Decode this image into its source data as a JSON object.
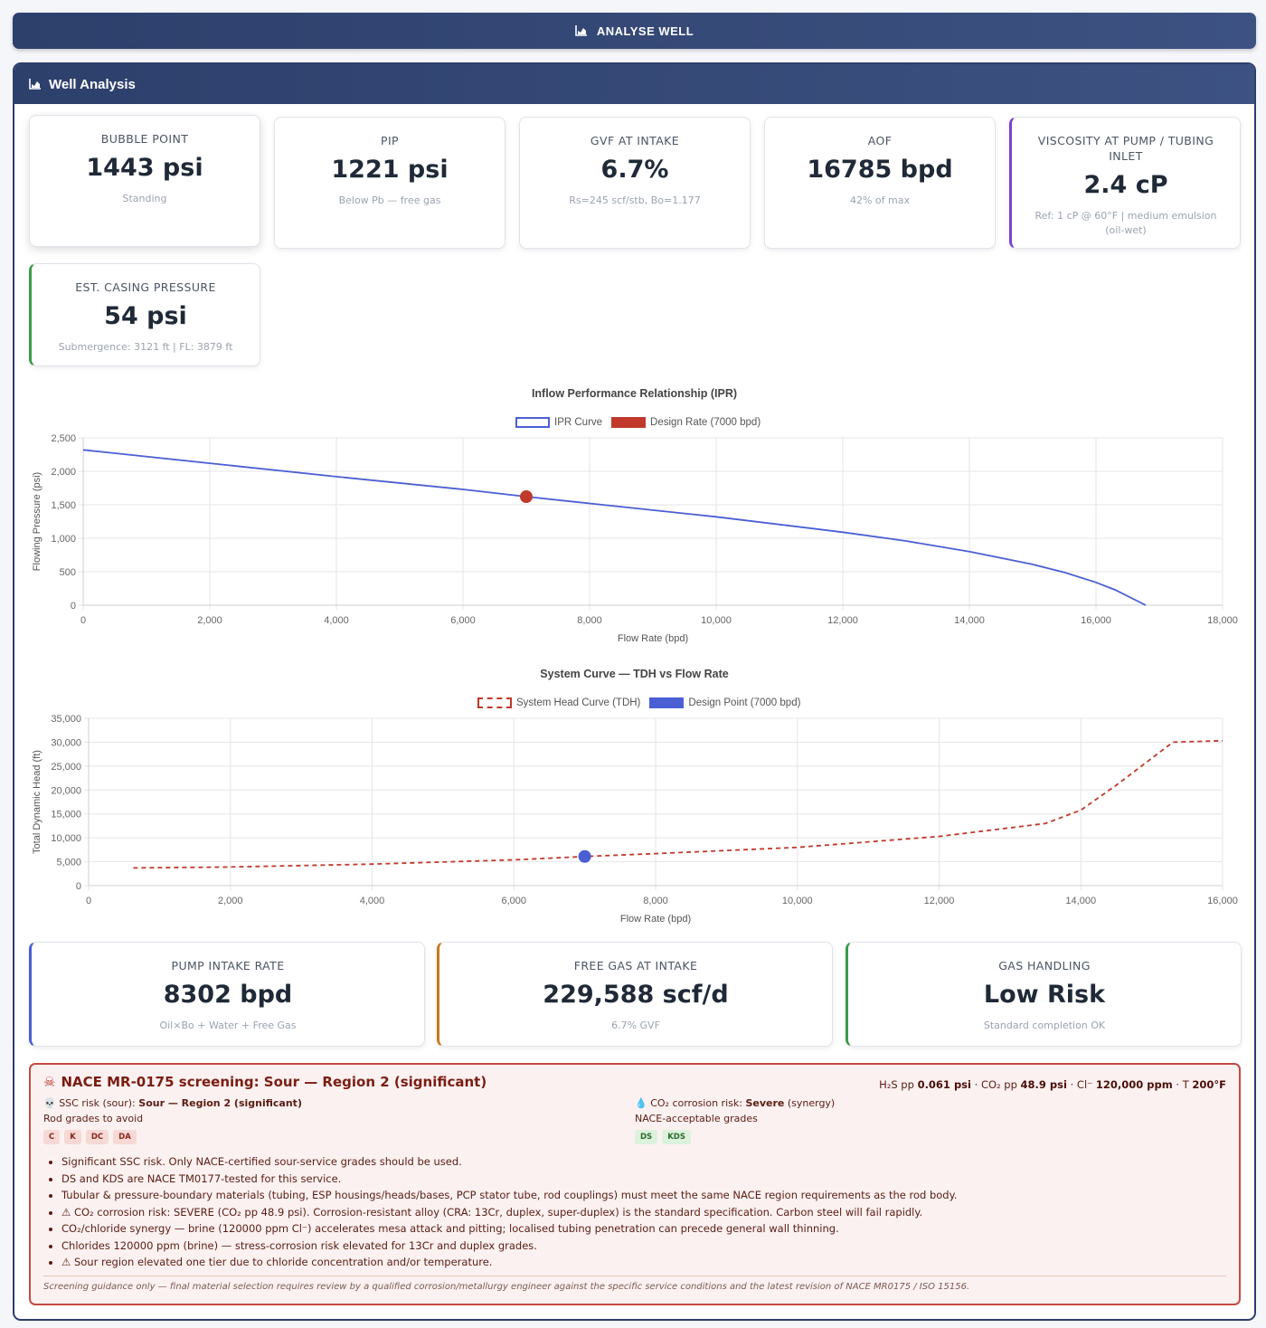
{
  "analyse_button": {
    "label": "ANALYSE WELL"
  },
  "panel": {
    "title": "Well Analysis"
  },
  "metrics": {
    "bubble_point": {
      "label": "BUBBLE POINT",
      "value": "1443 psi",
      "sub": "Standing"
    },
    "pip": {
      "label": "PIP",
      "value": "1221 psi",
      "sub": "Below Pb — free gas"
    },
    "gvf": {
      "label": "GVF AT INTAKE",
      "value": "6.7%",
      "sub": "Rs=245 scf/stb, Bo=1.177"
    },
    "aof": {
      "label": "AOF",
      "value": "16785 bpd",
      "sub": "42% of max"
    },
    "viscosity": {
      "label": "VISCOSITY AT PUMP / TUBING INLET",
      "value": "2.4 cP",
      "sub": "Ref: 1 cP @ 60°F | medium emulsion (oil-wet)"
    },
    "casing": {
      "label": "EST. CASING PRESSURE",
      "value": "54 psi",
      "sub": "Submergence: 3121 ft | FL: 3879 ft"
    }
  },
  "bottom_metrics": {
    "intake_rate": {
      "label": "PUMP INTAKE RATE",
      "value": "8302 bpd",
      "sub": "Oil×Bo + Water + Free Gas"
    },
    "free_gas": {
      "label": "FREE GAS AT INTAKE",
      "value": "229,588 scf/d",
      "sub": "6.7% GVF"
    },
    "gas_handling": {
      "label": "GAS HANDLING",
      "value": "Low Risk",
      "sub": "Standard completion OK"
    }
  },
  "colors": {
    "ipr_line": "#4a5fd4",
    "design_rate": "#c0392b",
    "system_curve": "#c0392b",
    "design_point": "#4a5fd4",
    "accent_purple": "#7b3fd0",
    "accent_green": "#3a9a4a",
    "accent_blue": "#4a5fd4",
    "accent_orange": "#c8781a"
  },
  "chart_data": [
    {
      "type": "line",
      "title": "Inflow Performance Relationship (IPR)",
      "xlabel": "Flow Rate (bpd)",
      "ylabel": "Flowing Pressure (psi)",
      "xlim": [
        0,
        18000
      ],
      "ylim": [
        0,
        2500
      ],
      "x_ticks": [
        "0",
        "2,000",
        "4,000",
        "6,000",
        "8,000",
        "10,000",
        "12,000",
        "14,000",
        "16,000",
        "18,000"
      ],
      "y_ticks": [
        "0",
        "500",
        "1,000",
        "1,500",
        "2,000",
        "2,500"
      ],
      "grid": true,
      "legend_position": "top",
      "series": [
        {
          "name": "IPR Curve",
          "points": [
            [
              0,
              2320
            ],
            [
              2000,
              2120
            ],
            [
              4000,
              1920
            ],
            [
              6000,
              1730
            ],
            [
              7000,
              1621
            ],
            [
              8000,
              1520
            ],
            [
              10000,
              1320
            ],
            [
              12000,
              1090
            ],
            [
              13000,
              960
            ],
            [
              14000,
              800
            ],
            [
              15000,
              610
            ],
            [
              15500,
              490
            ],
            [
              16000,
              340
            ],
            [
              16300,
              230
            ],
            [
              16785,
              0
            ]
          ]
        },
        {
          "name": "Design Rate (7000 bpd)",
          "points": [
            [
              7000,
              1621
            ]
          ]
        }
      ]
    },
    {
      "type": "line",
      "title": "System Curve — TDH vs Flow Rate",
      "xlabel": "Flow Rate (bpd)",
      "ylabel": "Total Dynamic Head (ft)",
      "xlim": [
        0,
        16000
      ],
      "ylim": [
        0,
        35000
      ],
      "x_ticks": [
        "0",
        "2,000",
        "4,000",
        "6,000",
        "8,000",
        "10,000",
        "12,000",
        "14,000",
        "16,000"
      ],
      "y_ticks": [
        "0",
        "5,000",
        "10,000",
        "15,000",
        "20,000",
        "25,000",
        "30,000",
        "35,000"
      ],
      "grid": true,
      "legend_position": "top",
      "series": [
        {
          "name": "System Head Curve (TDH)",
          "points": [
            [
              630,
              3700
            ],
            [
              2000,
              3900
            ],
            [
              4000,
              4500
            ],
            [
              6000,
              5400
            ],
            [
              7000,
              6100
            ],
            [
              8000,
              6700
            ],
            [
              10000,
              8000
            ],
            [
              12000,
              10300
            ],
            [
              13500,
              13000
            ],
            [
              14000,
              15800
            ],
            [
              14500,
              21000
            ],
            [
              15300,
              30000
            ],
            [
              16000,
              30300
            ]
          ]
        },
        {
          "name": "Design Point (7000 bpd)",
          "points": [
            [
              7000,
              6100
            ]
          ]
        }
      ]
    }
  ],
  "nace": {
    "title": "NACE MR-0175 screening: Sour — Region 2 (significant)",
    "params": {
      "h2s_label": "H₂S pp",
      "h2s_value": "0.061 psi",
      "co2_label": "CO₂ pp",
      "co2_value": "48.9 psi",
      "cl_label": "Cl⁻",
      "cl_value": "120,000 ppm",
      "t_label": "T",
      "t_value": "200°F",
      "sep": "·"
    },
    "ssc_label": "SSC risk (sour):",
    "ssc_value": "Sour — Region 2 (significant)",
    "avoid_label": "Rod grades to avoid",
    "avoid_grades": [
      "C",
      "K",
      "DC",
      "DA"
    ],
    "co2_risk_label": "CO₂ corrosion risk:",
    "co2_risk_value": "Severe",
    "co2_risk_note": "(synergy)",
    "accept_label": "NACE-acceptable grades",
    "accept_grades": [
      "DS",
      "KDS"
    ],
    "bullets": [
      "Significant SSC risk. Only NACE-certified sour-service grades should be used.",
      "DS and KDS are NACE TM0177-tested for this service.",
      "Tubular & pressure-boundary materials (tubing, ESP housings/heads/bases, PCP stator tube, rod couplings) must meet the same NACE region requirements as the rod body.",
      "⚠ CO₂ corrosion risk: SEVERE (CO₂ pp 48.9 psi). Corrosion-resistant alloy (CRA: 13Cr, duplex, super-duplex) is the standard specification. Carbon steel will fail rapidly.",
      "CO₂/chloride synergy — brine (120000 ppm Cl⁻) accelerates mesa attack and pitting; localised tubing penetration can precede general wall thinning.",
      "Chlorides 120000 ppm (brine) — stress-corrosion risk elevated for 13Cr and duplex grades.",
      "⚠ Sour region elevated one tier due to chloride concentration and/or temperature."
    ],
    "disclaimer": "Screening guidance only — final material selection requires review by a qualified corrosion/metallurgy engineer against the specific service conditions and the latest revision of NACE MR0175 / ISO 15156."
  }
}
